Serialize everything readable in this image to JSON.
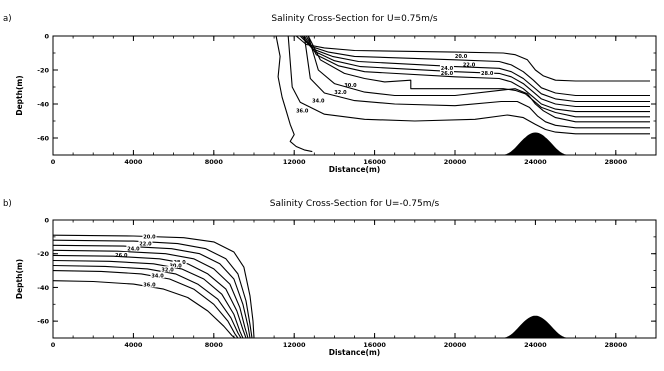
{
  "chart_data": [
    {
      "type": "line",
      "panel_label": "a)",
      "title": "Salinity Cross-Section for U=0.75m/s",
      "xlabel": "Distance(m)",
      "ylabel": "Depth(m)",
      "xlim": [
        0,
        30000
      ],
      "ylim": [
        -70,
        0
      ],
      "xticks": [
        0,
        4000,
        8000,
        12000,
        16000,
        20000,
        24000,
        28000
      ],
      "yticks": [
        0,
        -20,
        -40,
        -60
      ],
      "grid": false,
      "topography": {
        "center_x": 24000,
        "half_width": 1600,
        "top_depth": -57
      },
      "series": [
        {
          "label": "20.0",
          "label_at": [
            20300,
            -12
          ],
          "x": [
            12100,
            12600,
            13500,
            15000,
            20000,
            22400,
            23000,
            23600,
            24000,
            24400,
            25000,
            26000,
            29700
          ],
          "y": [
            0,
            -5,
            -7,
            -8.5,
            -9.5,
            -10,
            -11,
            -14,
            -20,
            -23.5,
            -26,
            -26.5,
            -26.5
          ]
        },
        {
          "label": "22.0",
          "label_at": [
            20700,
            -17
          ],
          "x": [
            12300,
            12800,
            13700,
            15000,
            20000,
            22200,
            22800,
            23400,
            23900,
            24300,
            25000,
            26000,
            29700
          ],
          "y": [
            0,
            -6,
            -9.5,
            -12,
            -14,
            -15,
            -17,
            -21,
            -26,
            -30.5,
            -33.5,
            -35,
            -35
          ]
        },
        {
          "label": "24.0",
          "label_at": [
            19600,
            -19
          ],
          "x": [
            12400,
            12900,
            13900,
            15200,
            20000,
            22200,
            22800,
            23400,
            23900,
            24300,
            25000,
            26000,
            29700
          ],
          "y": [
            0,
            -7.5,
            -12,
            -15,
            -18,
            -19,
            -21,
            -25,
            -30,
            -34,
            -37,
            -38.5,
            -38.5
          ]
        },
        {
          "label": "26.0",
          "label_at": [
            19600,
            -22
          ],
          "x": [
            12500,
            13000,
            14000,
            15300,
            20000,
            22200,
            22800,
            23400,
            23900,
            24300,
            25000,
            26000,
            29700
          ],
          "y": [
            0,
            -9,
            -14.5,
            -18,
            -21,
            -22,
            -24,
            -28,
            -33,
            -37,
            -40,
            -41.5,
            -41.5
          ]
        },
        {
          "label": "28.0",
          "label_at": [
            21600,
            -22
          ],
          "x": [
            12600,
            13100,
            14200,
            15500,
            20000,
            22200,
            22800,
            23400,
            23900,
            24300,
            25000,
            26000,
            29700
          ],
          "y": [
            0,
            -11,
            -17.5,
            -21,
            -24,
            -25,
            -27,
            -31,
            -36,
            -40,
            -43,
            -44.5,
            -44.5
          ]
        },
        {
          "label": "30.0",
          "label_at": [
            14800,
            -29
          ],
          "x": [
            12700,
            13300,
            14500,
            15500,
            16500,
            17800,
            17800,
            20000,
            22400,
            23000,
            23500,
            23900,
            24300,
            25000,
            26000,
            29700
          ],
          "y": [
            0,
            -14,
            -22,
            -25,
            -27,
            -26,
            -31,
            -31,
            -31,
            -32,
            -34,
            -38,
            -42,
            -45,
            -47.5,
            -47.5
          ]
        },
        {
          "label": "32.0",
          "label_at": [
            14300,
            -33
          ],
          "x": [
            12700,
            13200,
            14000,
            15500,
            17000,
            20000,
            22200,
            23000,
            23600,
            24000,
            24400,
            25000,
            26000,
            29700
          ],
          "y": [
            0,
            -20,
            -28,
            -33,
            -35,
            -35,
            -32,
            -31,
            -34,
            -40,
            -44,
            -48,
            -50.5,
            -50.5
          ]
        },
        {
          "label": "34.0",
          "label_at": [
            13200,
            -38
          ],
          "x": [
            12500,
            12800,
            13500,
            15000,
            17000,
            20000,
            22300,
            23100,
            23700,
            24100,
            24500,
            25000,
            26000,
            29700
          ],
          "y": [
            0,
            -25,
            -33.5,
            -38,
            -40,
            -41,
            -38.5,
            -38.5,
            -42,
            -47,
            -50.5,
            -52.5,
            -54,
            -54
          ]
        },
        {
          "label": "36.0",
          "label_at": [
            12400,
            -44
          ],
          "x": [
            11700,
            11900,
            12300,
            13500,
            15500,
            18000,
            21000,
            22600,
            23400,
            24000,
            24500,
            25000,
            26000,
            29700
          ],
          "y": [
            0,
            -30,
            -39,
            -46,
            -49,
            -50,
            -49,
            -46.5,
            -48,
            -52,
            -55,
            -56.5,
            -57.5,
            -57.5
          ]
        },
        {
          "label": "",
          "x": [
            11100,
            11300,
            11200,
            11400,
            11600,
            11800,
            12000,
            11800,
            12100,
            12500,
            12900
          ],
          "y": [
            0,
            -12,
            -24,
            -36,
            -44,
            -52,
            -58,
            -62,
            -65,
            -67,
            -68
          ]
        }
      ]
    },
    {
      "type": "line",
      "panel_label": "b)",
      "title": "Salinity Cross-Section for U=-0.75m/s",
      "xlabel": "Distance(m)",
      "ylabel": "Depth(m)",
      "xlim": [
        0,
        30000
      ],
      "ylim": [
        -70,
        0
      ],
      "xticks": [
        0,
        4000,
        8000,
        12000,
        16000,
        20000,
        24000,
        28000
      ],
      "yticks": [
        0,
        -20,
        -40,
        -60
      ],
      "grid": false,
      "topography": {
        "center_x": 24000,
        "half_width": 1600,
        "top_depth": -57
      },
      "series": [
        {
          "label": "20.0",
          "label_at": [
            4800,
            -10
          ],
          "x": [
            0,
            4000,
            6500,
            8000,
            9000,
            9500,
            9800,
            9950,
            10000
          ],
          "y": [
            -9,
            -9.5,
            -10.5,
            -13,
            -19,
            -28,
            -45,
            -60,
            -70
          ]
        },
        {
          "label": "22.0",
          "label_at": [
            4600,
            -14
          ],
          "x": [
            0,
            4000,
            6200,
            7600,
            8600,
            9200,
            9600,
            9800,
            9900
          ],
          "y": [
            -12,
            -12.5,
            -14,
            -17,
            -23,
            -32,
            -48,
            -62,
            -70
          ]
        },
        {
          "label": "24.0",
          "label_at": [
            4000,
            -17
          ],
          "x": [
            0,
            3500,
            5900,
            7300,
            8300,
            9000,
            9450,
            9700,
            9800
          ],
          "y": [
            -15,
            -15.5,
            -17,
            -20,
            -26,
            -35,
            -50,
            -63,
            -70
          ]
        },
        {
          "label": "26.0",
          "label_at": [
            3400,
            -21
          ],
          "x": [
            0,
            3200,
            5600,
            7000,
            8000,
            8800,
            9300,
            9550,
            9700
          ],
          "y": [
            -18,
            -18.5,
            -20,
            -23,
            -29,
            -38,
            -52,
            -64,
            -70
          ]
        },
        {
          "label": "28.0",
          "label_at": [
            6300,
            -25
          ],
          "x": [
            0,
            3000,
            5300,
            6700,
            7700,
            8600,
            9150,
            9450,
            9600
          ],
          "y": [
            -21,
            -21.5,
            -23,
            -26,
            -32,
            -41,
            -54,
            -65,
            -70
          ]
        },
        {
          "label": "30.0",
          "label_at": [
            6100,
            -27
          ],
          "x": [
            0,
            2800,
            5000,
            6400,
            7500,
            8400,
            9000,
            9300,
            9450
          ],
          "y": [
            -24,
            -24.5,
            -26,
            -29,
            -35,
            -44,
            -56,
            -66,
            -70
          ]
        },
        {
          "label": "32.0",
          "label_at": [
            5700,
            -29.5
          ],
          "x": [
            0,
            2600,
            4700,
            6100,
            7200,
            8200,
            8850,
            9200,
            9350
          ],
          "y": [
            -27,
            -27.5,
            -29,
            -32,
            -38,
            -47,
            -58,
            -67,
            -70
          ]
        },
        {
          "label": "34.0",
          "label_at": [
            5200,
            -33
          ],
          "x": [
            0,
            2400,
            4400,
            5800,
            7000,
            8000,
            8700,
            9050,
            9200
          ],
          "y": [
            -30,
            -30.5,
            -32,
            -35,
            -41,
            -50,
            -60,
            -67.5,
            -70
          ]
        },
        {
          "label": "36.0",
          "label_at": [
            4800,
            -38.5
          ],
          "x": [
            0,
            2000,
            4000,
            5500,
            6700,
            7700,
            8500,
            8900,
            9050
          ],
          "y": [
            -36,
            -36.5,
            -38,
            -41,
            -46,
            -54,
            -63,
            -68.5,
            -70
          ]
        }
      ]
    }
  ]
}
